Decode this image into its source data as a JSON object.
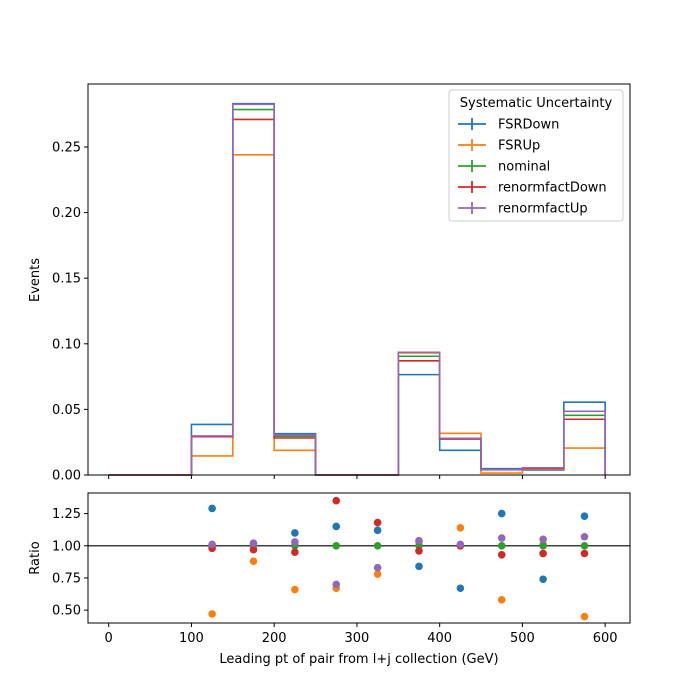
{
  "chart_data": {
    "type": "line",
    "subtype": "step-histogram-with-ratio-panel",
    "xlabel": "Leading pt of pair from l+j collection (GeV)",
    "ylabel_top": "Events",
    "ylabel_bottom": "Ratio",
    "legend_title": "Systematic Uncertainty",
    "legend_position": "top-right",
    "grid": false,
    "xlim": [
      -25,
      630
    ],
    "ylim_top": [
      0,
      0.298
    ],
    "ylim_bottom": [
      0.4,
      1.41
    ],
    "x_ticks": [
      0,
      100,
      200,
      300,
      400,
      500,
      600
    ],
    "y_ticks_top": [
      0.0,
      0.05,
      0.1,
      0.15,
      0.2,
      0.25
    ],
    "y_tick_labels_top": [
      "0.00",
      "0.05",
      "0.10",
      "0.15",
      "0.20",
      "0.25"
    ],
    "y_ticks_bottom": [
      0.5,
      0.75,
      1.0,
      1.25
    ],
    "y_tick_labels_bottom": [
      "0.50",
      "0.75",
      "1.00",
      "1.25"
    ],
    "bin_edges": [
      0,
      50,
      100,
      150,
      200,
      250,
      300,
      350,
      400,
      450,
      500,
      550,
      600
    ],
    "ratio_reference": 1.0,
    "series": [
      {
        "name": "FSRDown",
        "color": "#1f77b4",
        "values": [
          0,
          0,
          0.0385,
          0.283,
          0.0315,
          0,
          0,
          0.0765,
          0.0188,
          0.0048,
          0.0038,
          0.0555
        ],
        "ratio": [
          null,
          null,
          null,
          null,
          null,
          null,
          null,
          null,
          null,
          null,
          null,
          null
        ]
      },
      {
        "name": "FSRUp",
        "color": "#ff7f0e",
        "values": [
          0,
          0,
          0.0145,
          0.244,
          0.0188,
          0,
          0,
          0.093,
          0.0318,
          0.0015,
          0.0045,
          0.0205
        ],
        "ratio": [
          null,
          null,
          null,
          null,
          null,
          null,
          null,
          null,
          null,
          null,
          null,
          null
        ]
      },
      {
        "name": "nominal",
        "color": "#2ca02c",
        "values": [
          0,
          0,
          0.0295,
          0.2785,
          0.0295,
          0,
          0,
          0.0905,
          0.0275,
          0.004,
          0.0052,
          0.0455
        ],
        "ratio": [
          null,
          null,
          null,
          null,
          null,
          null,
          null,
          null,
          null,
          null,
          null,
          null
        ]
      },
      {
        "name": "renormfactDown",
        "color": "#d62728",
        "values": [
          0,
          0,
          0.0292,
          0.271,
          0.0282,
          0,
          0,
          0.087,
          0.0275,
          0.004,
          0.005,
          0.0425
        ],
        "ratio": [
          null,
          null,
          null,
          null,
          null,
          null,
          null,
          null,
          null,
          null,
          null,
          null
        ]
      },
      {
        "name": "renormfactUp",
        "color": "#9467bd",
        "values": [
          0,
          0,
          0.0298,
          0.2825,
          0.0305,
          0,
          0,
          0.0935,
          0.028,
          0.0042,
          0.0055,
          0.0485
        ],
        "ratio": [
          null,
          null,
          null,
          null,
          null,
          null,
          null,
          null,
          null,
          null,
          null,
          null
        ]
      }
    ],
    "ratio_points": [
      {
        "series": "FSRDown",
        "x": [
          125,
          175,
          225,
          275,
          325,
          375,
          425,
          475,
          525,
          575
        ],
        "y": [
          1.29,
          1.01,
          1.1,
          1.15,
          1.12,
          0.84,
          0.67,
          1.25,
          0.74,
          1.23
        ]
      },
      {
        "series": "FSRUp",
        "x": [
          125,
          175,
          225,
          275,
          325,
          375,
          425,
          475,
          525,
          575
        ],
        "y": [
          0.47,
          0.88,
          0.66,
          0.67,
          0.78,
          1.03,
          1.14,
          0.58,
          1.01,
          0.45
        ]
      },
      {
        "series": "nominal",
        "x": [
          125,
          175,
          225,
          275,
          325,
          375,
          425,
          475,
          525,
          575
        ],
        "y": [
          1.0,
          1.0,
          1.0,
          1.0,
          1.0,
          1.0,
          1.0,
          1.0,
          1.0,
          1.0
        ]
      },
      {
        "series": "renormfactDown",
        "x": [
          125,
          175,
          225,
          275,
          325,
          375,
          425,
          475,
          525,
          575
        ],
        "y": [
          0.98,
          0.97,
          0.95,
          1.35,
          1.18,
          0.96,
          1.0,
          0.93,
          0.94,
          0.94
        ]
      },
      {
        "series": "renormfactUp",
        "x": [
          125,
          175,
          225,
          275,
          325,
          375,
          425,
          475,
          525,
          575
        ],
        "y": [
          1.01,
          1.02,
          1.03,
          0.7,
          0.83,
          1.04,
          1.01,
          1.06,
          1.05,
          1.07
        ]
      }
    ]
  }
}
